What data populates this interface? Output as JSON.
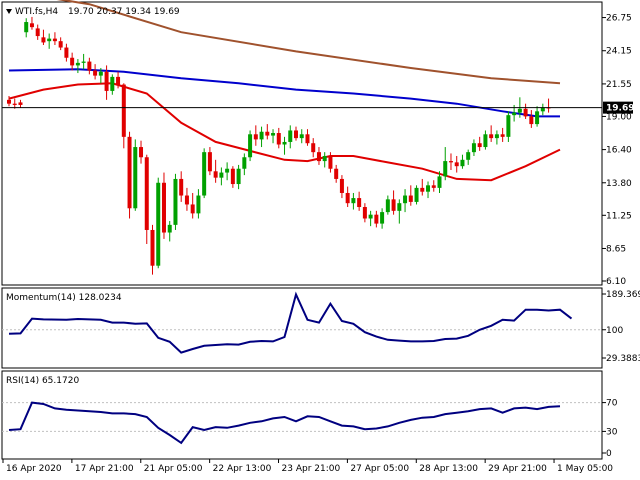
{
  "chart_data": [
    {
      "type": "candlestick",
      "panel": "price",
      "symbol_label": "WTI.fs,H4",
      "ohlc_label": "19.70 20.37 19.34 19.69",
      "y_ticks": [
        "26.75",
        "24.15",
        "21.55",
        "19.00",
        "16.40",
        "13.80",
        "11.25",
        "8.65",
        "6.10"
      ],
      "ylim": [
        6.1,
        27.5
      ],
      "current_price": "19.69",
      "current_price_value": 19.69,
      "candles": [
        [
          20.3,
          20.6,
          19.8,
          20.0
        ],
        [
          20.0,
          20.4,
          19.6,
          19.9
        ],
        [
          20.1,
          20.3,
          19.7,
          19.9
        ],
        [
          25.6,
          26.7,
          25.2,
          26.4
        ],
        [
          26.3,
          26.8,
          25.8,
          26.0
        ],
        [
          25.9,
          26.2,
          25.0,
          25.3
        ],
        [
          25.2,
          25.8,
          24.6,
          24.8
        ],
        [
          24.9,
          25.5,
          24.3,
          25.1
        ],
        [
          25.1,
          25.6,
          24.6,
          24.9
        ],
        [
          24.9,
          25.2,
          24.2,
          24.4
        ],
        [
          24.4,
          24.7,
          23.3,
          23.6
        ],
        [
          23.6,
          24.0,
          22.6,
          23.0
        ],
        [
          23.0,
          23.5,
          22.4,
          23.2
        ],
        [
          23.2,
          23.9,
          22.7,
          23.3
        ],
        [
          23.3,
          23.6,
          22.3,
          22.6
        ],
        [
          22.6,
          23.1,
          21.9,
          22.2
        ],
        [
          22.2,
          22.8,
          21.6,
          22.5
        ],
        [
          22.5,
          23.0,
          20.3,
          21.0
        ],
        [
          21.0,
          22.3,
          20.7,
          22.1
        ],
        [
          22.1,
          22.5,
          21.2,
          21.5
        ],
        [
          21.5,
          21.6,
          16.5,
          17.4
        ],
        [
          17.4,
          17.8,
          11.0,
          11.8
        ],
        [
          11.8,
          17.2,
          11.6,
          16.6
        ],
        [
          16.6,
          17.1,
          15.3,
          15.8
        ],
        [
          15.8,
          16.0,
          9.0,
          10.1
        ],
        [
          10.1,
          10.5,
          6.6,
          7.3
        ],
        [
          7.3,
          14.2,
          7.1,
          13.8
        ],
        [
          13.8,
          14.6,
          9.4,
          9.9
        ],
        [
          9.9,
          10.8,
          9.2,
          10.5
        ],
        [
          10.5,
          14.5,
          10.1,
          14.1
        ],
        [
          14.1,
          14.7,
          12.3,
          12.8
        ],
        [
          12.8,
          13.4,
          11.6,
          12.1
        ],
        [
          12.1,
          13.0,
          11.0,
          11.4
        ],
        [
          11.4,
          13.3,
          11.0,
          12.8
        ],
        [
          12.8,
          16.5,
          12.6,
          16.2
        ],
        [
          16.2,
          16.6,
          14.4,
          14.7
        ],
        [
          14.7,
          15.6,
          13.8,
          14.2
        ],
        [
          14.2,
          15.0,
          13.6,
          14.6
        ],
        [
          14.6,
          15.4,
          14.0,
          14.9
        ],
        [
          14.9,
          15.1,
          13.4,
          13.7
        ],
        [
          13.7,
          15.2,
          13.3,
          14.9
        ],
        [
          14.9,
          16.1,
          14.4,
          15.8
        ],
        [
          15.8,
          17.9,
          15.5,
          17.6
        ],
        [
          17.6,
          18.3,
          16.7,
          17.2
        ],
        [
          17.2,
          18.2,
          16.6,
          17.8
        ],
        [
          17.8,
          18.4,
          17.2,
          17.5
        ],
        [
          17.5,
          18.0,
          16.9,
          17.7
        ],
        [
          17.7,
          18.1,
          16.5,
          16.8
        ],
        [
          16.8,
          17.4,
          16.0,
          17.0
        ],
        [
          17.0,
          18.3,
          16.5,
          17.9
        ],
        [
          17.9,
          18.2,
          17.1,
          17.3
        ],
        [
          17.3,
          18.0,
          16.9,
          17.6
        ],
        [
          17.6,
          18.0,
          16.7,
          16.9
        ],
        [
          16.9,
          17.3,
          15.8,
          16.2
        ],
        [
          16.2,
          16.6,
          15.2,
          15.5
        ],
        [
          15.5,
          16.2,
          15.0,
          15.9
        ],
        [
          15.9,
          16.2,
          14.6,
          14.9
        ],
        [
          14.9,
          15.2,
          13.8,
          14.1
        ],
        [
          14.1,
          14.4,
          12.6,
          13.0
        ],
        [
          13.0,
          13.5,
          11.9,
          12.2
        ],
        [
          12.2,
          13.0,
          11.7,
          12.6
        ],
        [
          12.6,
          13.1,
          11.6,
          11.9
        ],
        [
          11.9,
          12.2,
          10.7,
          11.0
        ],
        [
          11.0,
          11.6,
          10.4,
          11.3
        ],
        [
          11.3,
          11.6,
          10.3,
          10.6
        ],
        [
          10.6,
          11.8,
          10.2,
          11.5
        ],
        [
          11.5,
          12.8,
          11.3,
          12.5
        ],
        [
          12.5,
          13.2,
          11.3,
          11.6
        ],
        [
          11.6,
          12.5,
          10.6,
          12.2
        ],
        [
          12.2,
          13.3,
          11.5,
          12.8
        ],
        [
          12.8,
          13.6,
          12.0,
          12.3
        ],
        [
          12.3,
          13.6,
          12.1,
          13.4
        ],
        [
          13.4,
          14.1,
          12.8,
          13.1
        ],
        [
          13.1,
          13.9,
          12.6,
          13.6
        ],
        [
          13.6,
          14.0,
          13.1,
          13.4
        ],
        [
          13.4,
          14.7,
          13.0,
          14.3
        ],
        [
          14.3,
          16.6,
          14.0,
          15.5
        ],
        [
          15.5,
          16.1,
          14.8,
          15.4
        ],
        [
          15.4,
          15.9,
          14.6,
          15.1
        ],
        [
          15.1,
          16.0,
          14.9,
          15.6
        ],
        [
          15.6,
          16.4,
          15.2,
          16.2
        ],
        [
          16.2,
          17.2,
          15.9,
          16.9
        ],
        [
          16.9,
          17.4,
          16.3,
          16.6
        ],
        [
          16.6,
          17.9,
          16.4,
          17.6
        ],
        [
          17.6,
          18.3,
          17.0,
          17.3
        ],
        [
          17.3,
          17.9,
          16.8,
          17.6
        ],
        [
          17.6,
          18.1,
          17.0,
          17.4
        ],
        [
          17.4,
          19.4,
          17.0,
          19.1
        ],
        [
          19.1,
          19.9,
          18.6,
          19.3
        ],
        [
          19.3,
          20.5,
          18.9,
          19.6
        ],
        [
          19.6,
          20.0,
          18.8,
          19.0
        ],
        [
          19.0,
          19.5,
          18.1,
          18.4
        ],
        [
          18.4,
          19.8,
          18.2,
          19.4
        ],
        [
          19.4,
          20.0,
          19.1,
          19.7
        ],
        [
          19.7,
          20.4,
          19.3,
          19.69
        ]
      ],
      "moving_averages": [
        {
          "color": "#a0522d",
          "values": [
            [
              0,
              28.8
            ],
            [
              14,
              27.8
            ],
            [
              30,
              25.6
            ],
            [
              50,
              24.1
            ],
            [
              70,
              22.8
            ],
            [
              84,
              22.0
            ],
            [
              96,
              21.6
            ]
          ]
        },
        {
          "color": "#0000cd",
          "values": [
            [
              0,
              22.6
            ],
            [
              12,
              22.7
            ],
            [
              20,
              22.5
            ],
            [
              30,
              22.0
            ],
            [
              40,
              21.6
            ],
            [
              50,
              21.1
            ],
            [
              60,
              20.8
            ],
            [
              70,
              20.4
            ],
            [
              78,
              20.0
            ],
            [
              86,
              19.4
            ],
            [
              92,
              19.0
            ],
            [
              96,
              19.0
            ]
          ]
        },
        {
          "color": "#e00000",
          "values": [
            [
              0,
              20.4
            ],
            [
              6,
              21.1
            ],
            [
              12,
              21.5
            ],
            [
              18,
              21.6
            ],
            [
              24,
              20.8
            ],
            [
              30,
              18.5
            ],
            [
              36,
              17.0
            ],
            [
              42,
              16.3
            ],
            [
              48,
              15.6
            ],
            [
              52,
              15.5
            ],
            [
              56,
              15.9
            ],
            [
              60,
              15.9
            ],
            [
              66,
              15.4
            ],
            [
              72,
              14.9
            ],
            [
              78,
              14.1
            ],
            [
              84,
              14.0
            ],
            [
              90,
              15.1
            ],
            [
              96,
              16.4
            ]
          ]
        }
      ]
    },
    {
      "type": "line",
      "panel": "momentum",
      "label": "Momentum(14) 128.0234",
      "y_ticks": [
        "189.3693",
        "100",
        "29.3883"
      ],
      "ylim": [
        29.3883,
        189.3693
      ],
      "reference_level": 100,
      "color": "#000080",
      "values": [
        [
          0,
          90
        ],
        [
          2,
          91
        ],
        [
          4,
          128
        ],
        [
          6,
          126
        ],
        [
          10,
          125
        ],
        [
          12,
          127
        ],
        [
          16,
          125
        ],
        [
          18,
          118
        ],
        [
          20,
          118
        ],
        [
          22,
          115
        ],
        [
          24,
          116
        ],
        [
          26,
          80
        ],
        [
          28,
          70
        ],
        [
          30,
          43
        ],
        [
          32,
          52
        ],
        [
          34,
          60
        ],
        [
          36,
          62
        ],
        [
          38,
          64
        ],
        [
          40,
          63
        ],
        [
          42,
          70
        ],
        [
          44,
          72
        ],
        [
          46,
          71
        ],
        [
          48,
          82
        ],
        [
          50,
          188
        ],
        [
          52,
          125
        ],
        [
          54,
          118
        ],
        [
          56,
          165
        ],
        [
          58,
          122
        ],
        [
          60,
          115
        ],
        [
          62,
          94
        ],
        [
          64,
          83
        ],
        [
          66,
          75
        ],
        [
          68,
          73
        ],
        [
          70,
          71
        ],
        [
          72,
          71
        ],
        [
          74,
          72
        ],
        [
          76,
          77
        ],
        [
          78,
          78
        ],
        [
          80,
          85
        ],
        [
          82,
          100
        ],
        [
          84,
          110
        ],
        [
          86,
          125
        ],
        [
          88,
          123
        ],
        [
          90,
          150
        ],
        [
          92,
          150
        ],
        [
          94,
          148
        ],
        [
          96,
          150
        ],
        [
          98,
          128
        ]
      ]
    },
    {
      "type": "line",
      "panel": "rsi",
      "label": "RSI(14) 65.1720",
      "y_ticks": [
        "70",
        "30",
        "0"
      ],
      "ylim": [
        0,
        100
      ],
      "reference_levels": [
        70,
        30
      ],
      "color": "#000080",
      "values": [
        [
          0,
          32
        ],
        [
          2,
          33
        ],
        [
          4,
          70
        ],
        [
          6,
          68
        ],
        [
          8,
          62
        ],
        [
          10,
          60
        ],
        [
          12,
          59
        ],
        [
          14,
          58
        ],
        [
          16,
          57
        ],
        [
          18,
          55
        ],
        [
          20,
          55
        ],
        [
          22,
          54
        ],
        [
          24,
          50
        ],
        [
          26,
          35
        ],
        [
          28,
          25
        ],
        [
          30,
          14
        ],
        [
          32,
          36
        ],
        [
          34,
          32
        ],
        [
          36,
          36
        ],
        [
          38,
          35
        ],
        [
          40,
          38
        ],
        [
          42,
          42
        ],
        [
          44,
          44
        ],
        [
          46,
          48
        ],
        [
          48,
          50
        ],
        [
          50,
          44
        ],
        [
          52,
          51
        ],
        [
          54,
          50
        ],
        [
          56,
          44
        ],
        [
          58,
          38
        ],
        [
          60,
          37
        ],
        [
          62,
          33
        ],
        [
          64,
          34
        ],
        [
          66,
          37
        ],
        [
          68,
          42
        ],
        [
          70,
          46
        ],
        [
          72,
          49
        ],
        [
          74,
          50
        ],
        [
          76,
          54
        ],
        [
          78,
          56
        ],
        [
          80,
          58
        ],
        [
          82,
          61
        ],
        [
          84,
          62
        ],
        [
          86,
          56
        ],
        [
          88,
          62
        ],
        [
          90,
          63
        ],
        [
          92,
          61
        ],
        [
          94,
          64
        ],
        [
          96,
          65
        ]
      ]
    }
  ],
  "x_ticks": [
    {
      "label": "16 Apr 2020",
      "index": 0
    },
    {
      "label": "17 Apr 21:00",
      "index": 12
    },
    {
      "label": "21 Apr 05:00",
      "index": 24
    },
    {
      "label": "22 Apr 13:00",
      "index": 36
    },
    {
      "label": "23 Apr 21:00",
      "index": 48
    },
    {
      "label": "27 Apr 05:00",
      "index": 60
    },
    {
      "label": "28 Apr 13:00",
      "index": 72
    },
    {
      "label": "29 Apr 21:00",
      "index": 84
    },
    {
      "label": "1 May 05:00",
      "index": 96
    }
  ],
  "colors": {
    "bull": "#00a000",
    "bear": "#e00000",
    "grid": "#c0c0c0",
    "axis": "#000000"
  }
}
